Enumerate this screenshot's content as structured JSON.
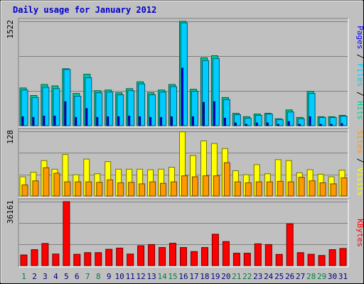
{
  "chart_data": {
    "type": "bar",
    "title": "Daily usage for January 2012",
    "categories": [
      "1",
      "2",
      "3",
      "4",
      "5",
      "6",
      "7",
      "8",
      "9",
      "10",
      "11",
      "12",
      "13",
      "14",
      "15",
      "16",
      "17",
      "18",
      "19",
      "20",
      "21",
      "22",
      "23",
      "24",
      "25",
      "26",
      "27",
      "28",
      "29",
      "30",
      "31"
    ],
    "weekend_days": [
      "1",
      "7",
      "8",
      "14",
      "15",
      "21",
      "22",
      "28",
      "29"
    ],
    "colors": {
      "hits": "#00cc99",
      "files": "#00ccff",
      "pages": "#0000ff",
      "visits": "#ffff00",
      "sites": "#ff9900",
      "kbytes": "#ff0000",
      "weekday_label": "#000080",
      "weekend_label": "#008040",
      "title": "#0000cc"
    },
    "panels": [
      {
        "id": "hits",
        "max_label": "1522",
        "ymax": 1522,
        "legend": [
          "Pages",
          "Files",
          "Hits"
        ],
        "series": [
          {
            "name": "Hits",
            "values": [
              550,
              440,
              600,
              580,
              830,
              470,
              750,
              510,
              520,
              480,
              540,
              640,
              480,
              520,
              600,
              1522,
              530,
              990,
              1020,
              410,
              180,
              130,
              170,
              180,
              100,
              230,
              120,
              500,
              130,
              130,
              150
            ]
          },
          {
            "name": "Files",
            "values": [
              520,
              410,
              560,
              540,
              820,
              430,
              700,
              480,
              490,
              450,
              510,
              610,
              450,
              490,
              570,
              1500,
              500,
              950,
              980,
              380,
              160,
              110,
              150,
              170,
              90,
              200,
              100,
              470,
              120,
              120,
              140
            ]
          },
          {
            "name": "Pages",
            "values": [
              130,
              120,
              140,
              140,
              350,
              120,
              250,
              120,
              130,
              130,
              140,
              130,
              120,
              120,
              130,
              840,
              130,
              340,
              350,
              110,
              40,
              20,
              40,
              40,
              20,
              60,
              20,
              130,
              20,
              20,
              30
            ]
          }
        ]
      },
      {
        "id": "visits",
        "max_label": "128",
        "ymax": 128,
        "legend": [
          "Sites",
          "Visits"
        ],
        "series": [
          {
            "name": "Visits",
            "values": [
              38,
              47,
              70,
              53,
              82,
              42,
              73,
              44,
              68,
              53,
              53,
              53,
              52,
              53,
              57,
              127,
              80,
              109,
              104,
              94,
              50,
              42,
              62,
              44,
              72,
              70,
              46,
              52,
              43,
              38,
              51
            ]
          },
          {
            "name": "Sites",
            "values": [
              22,
              30,
              56,
              45,
              28,
              28,
              28,
              27,
              32,
              26,
              27,
              24,
              28,
              25,
              28,
              40,
              38,
              40,
              40,
              66,
              28,
              26,
              28,
              28,
              29,
              28,
              37,
              30,
              26,
              24,
              36
            ]
          }
        ]
      },
      {
        "id": "kbytes",
        "max_label": "36161",
        "ymax": 36161,
        "legend": [
          "KBytes"
        ],
        "series": [
          {
            "name": "KBytes",
            "values": [
              6000,
              9000,
              12500,
              6500,
              36161,
              6400,
              7300,
              7300,
              9200,
              9900,
              6500,
              11200,
              11900,
              10200,
              12600,
              10200,
              7900,
              10200,
              17700,
              13600,
              7000,
              7000,
              12300,
              11900,
              6300,
              23600,
              7300,
              6400,
              5700,
              9000,
              9700
            ]
          }
        ]
      }
    ]
  }
}
